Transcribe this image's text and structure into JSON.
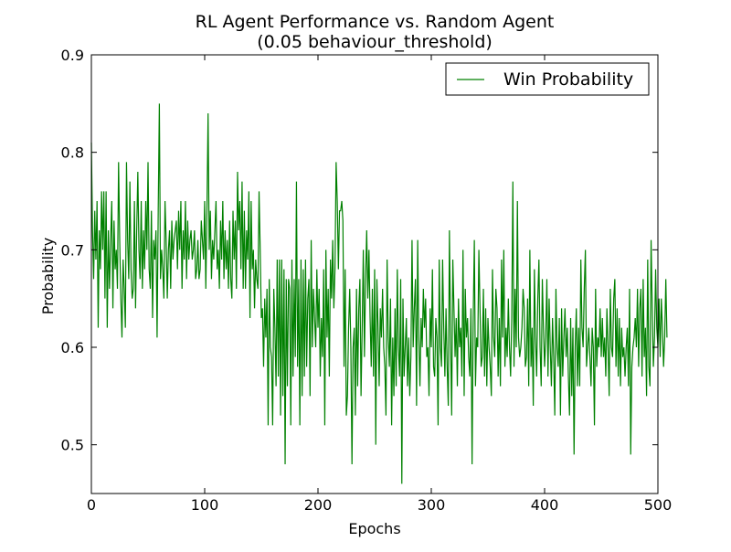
{
  "chart_data": {
    "type": "line",
    "title": "RL Agent Performance vs. Random Agent",
    "subtitle": "(0.05 behaviour_threshold)",
    "xlabel": "Epochs",
    "ylabel": "Probability",
    "xlim": [
      0,
      500
    ],
    "ylim": [
      0.45,
      0.9
    ],
    "xticks": [
      0,
      100,
      200,
      300,
      400,
      500
    ],
    "yticks": [
      0.5,
      0.6,
      0.7,
      0.8,
      0.9
    ],
    "xtick_labels": [
      "0",
      "100",
      "200",
      "300",
      "400",
      "500"
    ],
    "ytick_labels": [
      "0.5",
      "0.6",
      "0.7",
      "0.8",
      "0.9"
    ],
    "grid": false,
    "legend_position": "upper right",
    "series": [
      {
        "name": "Win Probability",
        "color": "#008000",
        "values": [
          0.81,
          0.72,
          0.67,
          0.74,
          0.69,
          0.75,
          0.62,
          0.72,
          0.68,
          0.76,
          0.7,
          0.76,
          0.65,
          0.76,
          0.62,
          0.72,
          0.66,
          0.71,
          0.75,
          0.64,
          0.73,
          0.68,
          0.7,
          0.66,
          0.79,
          0.71,
          0.65,
          0.61,
          0.69,
          0.66,
          0.62,
          0.79,
          0.71,
          0.67,
          0.77,
          0.68,
          0.65,
          0.66,
          0.75,
          0.64,
          0.72,
          0.78,
          0.7,
          0.67,
          0.75,
          0.66,
          0.72,
          0.68,
          0.75,
          0.7,
          0.79,
          0.68,
          0.66,
          0.74,
          0.63,
          0.71,
          0.69,
          0.72,
          0.61,
          0.74,
          0.85,
          0.67,
          0.7,
          0.68,
          0.65,
          0.75,
          0.71,
          0.65,
          0.7,
          0.72,
          0.66,
          0.73,
          0.69,
          0.71,
          0.72,
          0.73,
          0.68,
          0.74,
          0.7,
          0.75,
          0.66,
          0.72,
          0.69,
          0.75,
          0.67,
          0.73,
          0.69,
          0.71,
          0.72,
          0.69,
          0.7,
          0.72,
          0.67,
          0.68,
          0.71,
          0.67,
          0.68,
          0.73,
          0.71,
          0.69,
          0.75,
          0.66,
          0.74,
          0.84,
          0.7,
          0.74,
          0.67,
          0.71,
          0.69,
          0.72,
          0.75,
          0.68,
          0.7,
          0.66,
          0.73,
          0.69,
          0.75,
          0.67,
          0.72,
          0.68,
          0.71,
          0.66,
          0.73,
          0.67,
          0.65,
          0.74,
          0.69,
          0.73,
          0.66,
          0.78,
          0.72,
          0.75,
          0.68,
          0.77,
          0.66,
          0.74,
          0.66,
          0.72,
          0.69,
          0.76,
          0.63,
          0.75,
          0.68,
          0.7,
          0.64,
          0.69,
          0.67,
          0.66,
          0.76,
          0.7,
          0.63,
          0.64,
          0.58,
          0.65,
          0.61,
          0.66,
          0.52,
          0.67,
          0.6,
          0.59,
          0.52,
          0.66,
          0.62,
          0.56,
          0.69,
          0.57,
          0.69,
          0.53,
          0.69,
          0.55,
          0.68,
          0.48,
          0.67,
          0.56,
          0.67,
          0.66,
          0.52,
          0.69,
          0.57,
          0.67,
          0.59,
          0.77,
          0.58,
          0.67,
          0.52,
          0.69,
          0.55,
          0.68,
          0.57,
          0.69,
          0.58,
          0.65,
          0.67,
          0.55,
          0.71,
          0.6,
          0.66,
          0.63,
          0.6,
          0.68,
          0.62,
          0.66,
          0.57,
          0.63,
          0.59,
          0.68,
          0.52,
          0.7,
          0.61,
          0.66,
          0.57,
          0.69,
          0.65,
          0.71,
          0.64,
          0.68,
          0.79,
          0.75,
          0.68,
          0.74,
          0.74,
          0.75,
          0.73,
          0.58,
          0.68,
          0.53,
          0.55,
          0.62,
          0.66,
          0.6,
          0.48,
          0.6,
          0.62,
          0.53,
          0.66,
          0.56,
          0.64,
          0.67,
          0.55,
          0.62,
          0.7,
          0.59,
          0.67,
          0.72,
          0.65,
          0.7,
          0.63,
          0.58,
          0.66,
          0.57,
          0.68,
          0.5,
          0.67,
          0.62,
          0.56,
          0.64,
          0.61,
          0.66,
          0.6,
          0.58,
          0.53,
          0.69,
          0.61,
          0.58,
          0.65,
          0.52,
          0.61,
          0.55,
          0.64,
          0.56,
          0.68,
          0.6,
          0.57,
          0.67,
          0.46,
          0.65,
          0.57,
          0.6,
          0.63,
          0.56,
          0.61,
          0.55,
          0.59,
          0.71,
          0.6,
          0.64,
          0.67,
          0.54,
          0.71,
          0.61,
          0.56,
          0.63,
          0.6,
          0.66,
          0.62,
          0.65,
          0.59,
          0.6,
          0.55,
          0.64,
          0.6,
          0.68,
          0.58,
          0.57,
          0.63,
          0.61,
          0.52,
          0.69,
          0.6,
          0.58,
          0.69,
          0.62,
          0.57,
          0.64,
          0.58,
          0.54,
          0.72,
          0.61,
          0.53,
          0.69,
          0.64,
          0.59,
          0.63,
          0.56,
          0.65,
          0.6,
          0.62,
          0.57,
          0.7,
          0.55,
          0.66,
          0.61,
          0.63,
          0.59,
          0.57,
          0.64,
          0.48,
          0.63,
          0.71,
          0.56,
          0.61,
          0.6,
          0.7,
          0.64,
          0.58,
          0.59,
          0.66,
          0.57,
          0.64,
          0.56,
          0.63,
          0.6,
          0.58,
          0.55,
          0.68,
          0.61,
          0.59,
          0.66,
          0.64,
          0.57,
          0.63,
          0.56,
          0.69,
          0.61,
          0.7,
          0.58,
          0.62,
          0.59,
          0.65,
          0.6,
          0.57,
          0.63,
          0.77,
          0.58,
          0.66,
          0.6,
          0.75,
          0.61,
          0.59,
          0.6,
          0.62,
          0.66,
          0.64,
          0.58,
          0.59,
          0.65,
          0.56,
          0.7,
          0.58,
          0.62,
          0.54,
          0.68,
          0.61,
          0.57,
          0.65,
          0.69,
          0.6,
          0.56,
          0.67,
          0.62,
          0.58,
          0.61,
          0.67,
          0.57,
          0.65,
          0.6,
          0.56,
          0.63,
          0.59,
          0.53,
          0.66,
          0.6,
          0.58,
          0.63,
          0.53,
          0.64,
          0.57,
          0.61,
          0.64,
          0.59,
          0.62,
          0.57,
          0.53,
          0.63,
          0.55,
          0.62,
          0.49,
          0.6,
          0.64,
          0.56,
          0.62,
          0.56,
          0.69,
          0.62,
          0.6,
          0.66,
          0.7,
          0.58,
          0.6,
          0.62,
          0.59,
          0.56,
          0.62,
          0.6,
          0.52,
          0.66,
          0.58,
          0.61,
          0.6,
          0.64,
          0.59,
          0.63,
          0.59,
          0.61,
          0.57,
          0.64,
          0.6,
          0.55,
          0.66,
          0.6,
          0.59,
          0.65,
          0.67,
          0.58,
          0.64,
          0.57,
          0.63,
          0.56,
          0.62,
          0.59,
          0.6,
          0.57,
          0.6,
          0.62,
          0.56,
          0.66,
          0.49,
          0.58,
          0.6,
          0.61,
          0.63,
          0.6,
          0.66,
          0.58,
          0.64,
          0.66,
          0.57,
          0.67,
          0.59,
          0.62,
          0.55,
          0.69,
          0.58,
          0.56,
          0.71,
          0.64,
          0.58,
          0.61,
          0.68,
          0.62,
          0.6,
          0.65,
          0.59,
          0.65,
          0.62,
          0.58,
          0.61,
          0.67,
          0.61
        ]
      }
    ]
  }
}
